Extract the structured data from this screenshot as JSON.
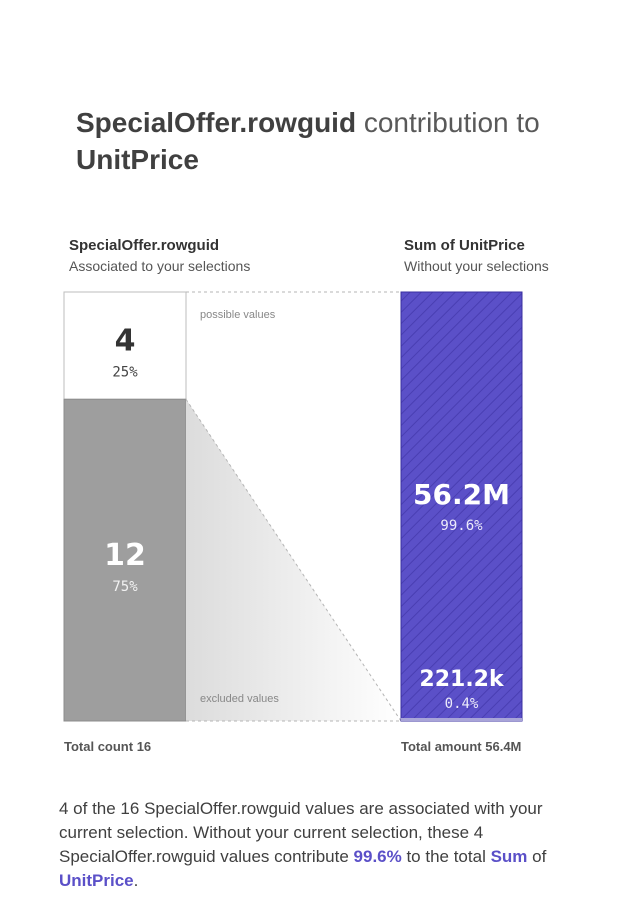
{
  "title": {
    "field": "SpecialOffer.rowguid",
    "middle": " contribution to ",
    "measure": "UnitPrice"
  },
  "left_header": {
    "title": "SpecialOffer.rowguid",
    "subtitle": "Associated to your selections"
  },
  "right_header": {
    "title": "Sum of UnitPrice",
    "subtitle": "Without your selections"
  },
  "labels": {
    "possible": "possible values",
    "excluded": "excluded values"
  },
  "footer": {
    "left": "Total count 16",
    "right": "Total amount 56.4M"
  },
  "description": {
    "part1": "4 of the 16 SpecialOffer.rowguid values are associated with your current selection. Without your current selection, these 4 SpecialOffer.rowguid values contribute ",
    "percent": "99.6%",
    "part2": " to the total ",
    "agg": "Sum",
    "part3": " of ",
    "measure": "UnitPrice",
    "part4": "."
  },
  "colors": {
    "accent": "#5b50c8",
    "excluded": "#9e9e9e",
    "possible": "#ffffff"
  },
  "chart_data": {
    "type": "bar",
    "left_bar": {
      "segments": [
        {
          "name": "possible values",
          "count": 4,
          "value_label": "4",
          "percent_label": "25%"
        },
        {
          "name": "excluded values",
          "count": 12,
          "value_label": "12",
          "percent_label": "75%"
        }
      ],
      "total": 16
    },
    "right_bar": {
      "segments": [
        {
          "value": 56200000,
          "value_label": "56.2M",
          "percent_label": "99.6%"
        },
        {
          "value": 221200,
          "value_label": "221.2k",
          "percent_label": "0.4%"
        }
      ],
      "total": 56400000
    }
  }
}
